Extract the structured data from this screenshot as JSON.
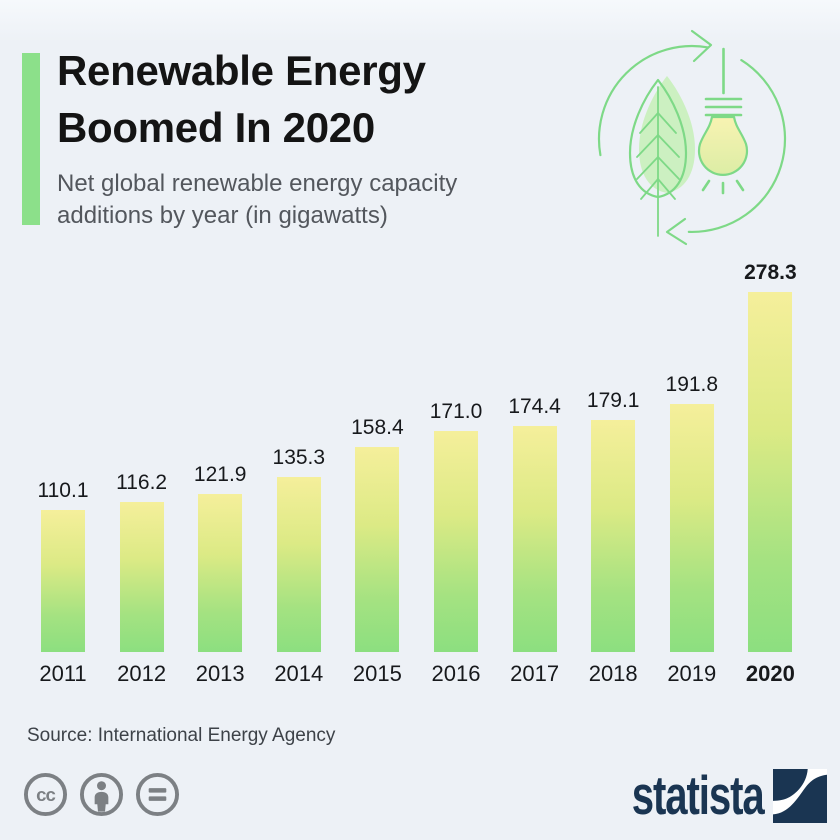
{
  "header": {
    "title_lines": [
      "Renewable Energy",
      "Boomed In 2020"
    ],
    "subtitle_lines": [
      "Net global renewable energy capacity",
      "additions by year (in gigawatts)"
    ]
  },
  "chart_data": {
    "type": "bar",
    "title": "Renewable Energy Boomed In 2020",
    "subtitle": "Net global renewable energy capacity additions by year (in gigawatts)",
    "categories": [
      "2011",
      "2012",
      "2013",
      "2014",
      "2015",
      "2016",
      "2017",
      "2018",
      "2019",
      "2020"
    ],
    "values": [
      110.1,
      116.2,
      121.9,
      135.3,
      158.4,
      171.0,
      174.4,
      179.1,
      191.8,
      278.3
    ],
    "unit": "gigawatts",
    "value_labels_shown": true,
    "highlight_category": "2020",
    "ylim": [
      0,
      290
    ],
    "grid": false,
    "legend": false
  },
  "icons": {
    "header_icon": "leaf-lightbulb-recycle-icon",
    "license_icons": [
      "creative-commons-icon",
      "attribution-icon",
      "no-derivatives-icon"
    ]
  },
  "footer": {
    "source": "Source: International Energy Agency",
    "brand": "statista"
  },
  "colors": {
    "background": "#edf1f6",
    "accent_green": "#8ce08a",
    "bar_gradient_top": "#f5ef9b",
    "bar_gradient_bottom": "#8cdf80",
    "icon_green": "#7ed987",
    "leaf_fill": "#c8efbb",
    "bulb_fill_top": "#f8f3b2",
    "bulb_fill_bottom": "#dceda5",
    "navy": "#1a3552",
    "license_gray": "#7c8084",
    "text_dark": "#17191c",
    "text_gray": "#53575d",
    "source_gray": "#3d4248"
  }
}
